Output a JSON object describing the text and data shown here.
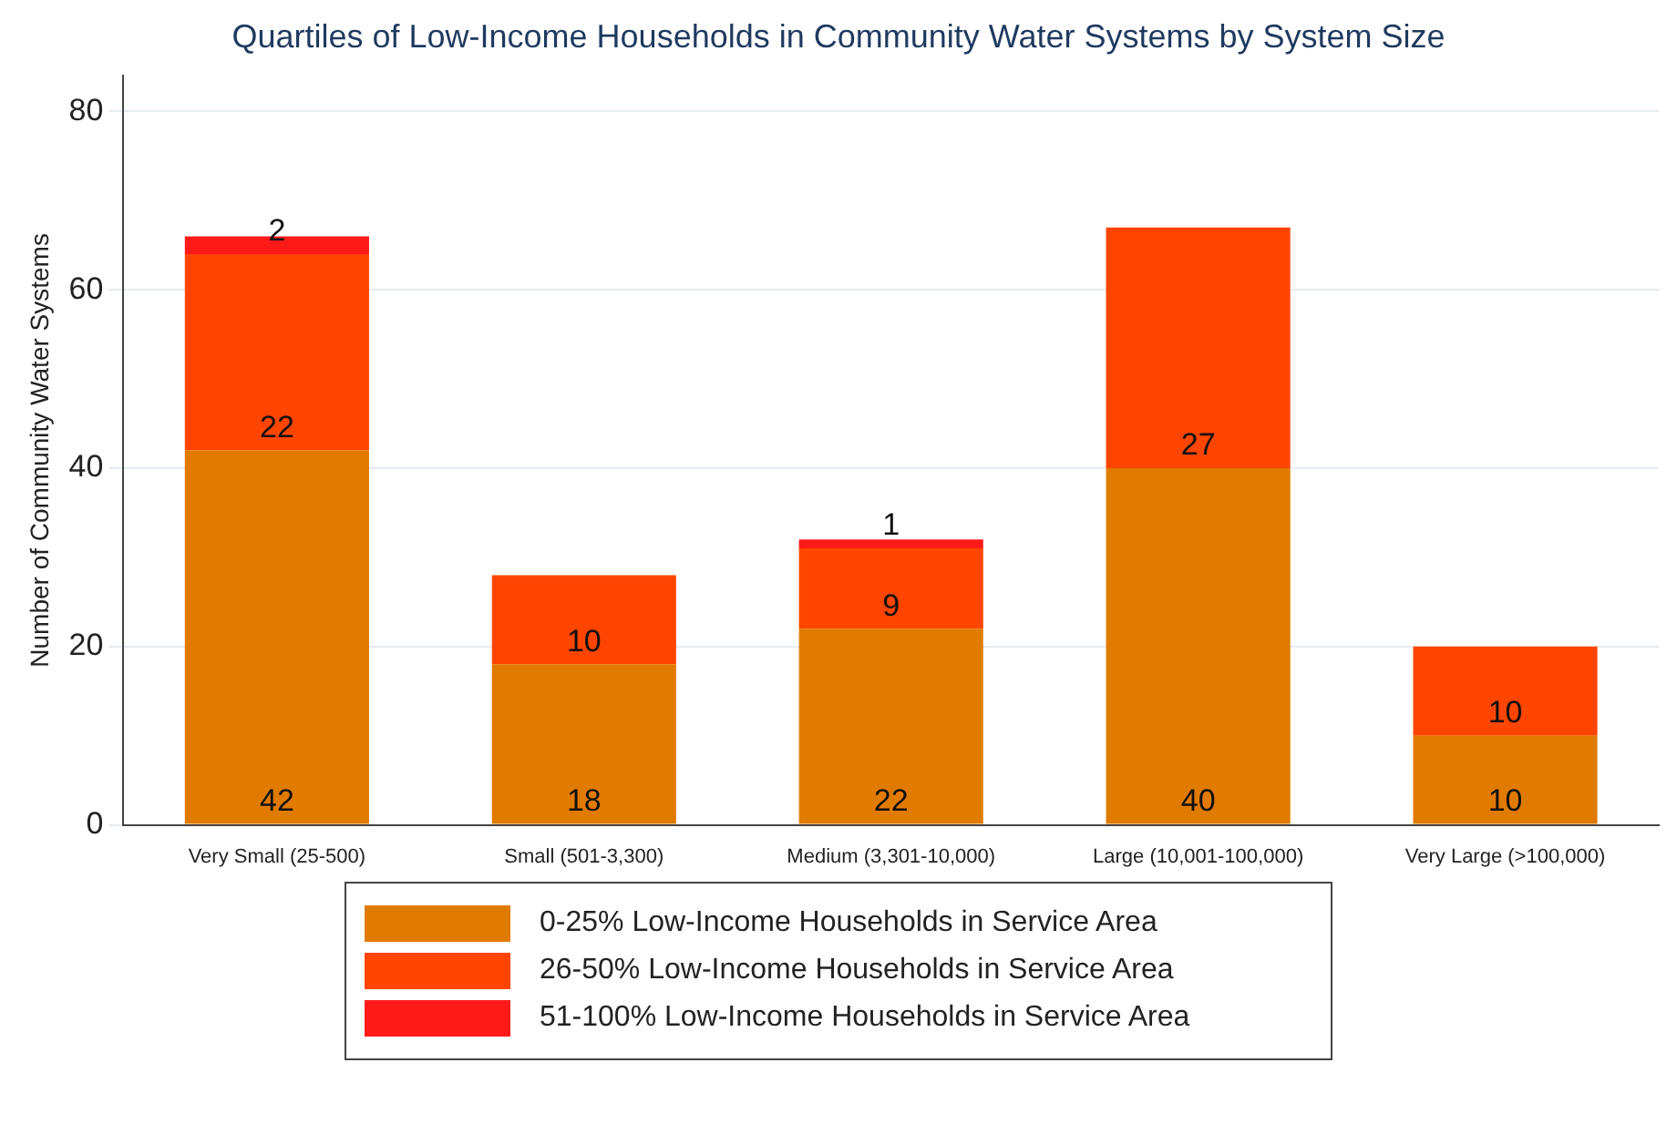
{
  "chart_data": {
    "type": "bar",
    "title": "Quartiles of Low-Income Households in Community Water Systems by System Size",
    "ylabel": "Number of Community Water Systems",
    "categories": [
      "Very Small (25-500)",
      "Small (501-3,300)",
      "Medium (3,301-10,000)",
      "Large (10,001-100,000)",
      "Very Large (>100,000)"
    ],
    "stacked": true,
    "data_labels": true,
    "grid": "y",
    "legend": "bottom",
    "ylim": [
      0,
      84
    ],
    "yticks": [
      0,
      20,
      40,
      60,
      80
    ],
    "series": [
      {
        "name": "0-25% Low-Income Households in Service Area",
        "color": "#e07b00",
        "values": [
          42,
          18,
          22,
          40,
          10
        ]
      },
      {
        "name": "26-50% Low-Income Households in Service Area",
        "color": "#ff4500",
        "values": [
          22,
          10,
          9,
          27,
          10
        ]
      },
      {
        "name": "51-100% Low-Income Households in Service Area",
        "color": "#ff1a1a",
        "values": [
          2,
          null,
          1,
          null,
          null
        ]
      }
    ]
  }
}
